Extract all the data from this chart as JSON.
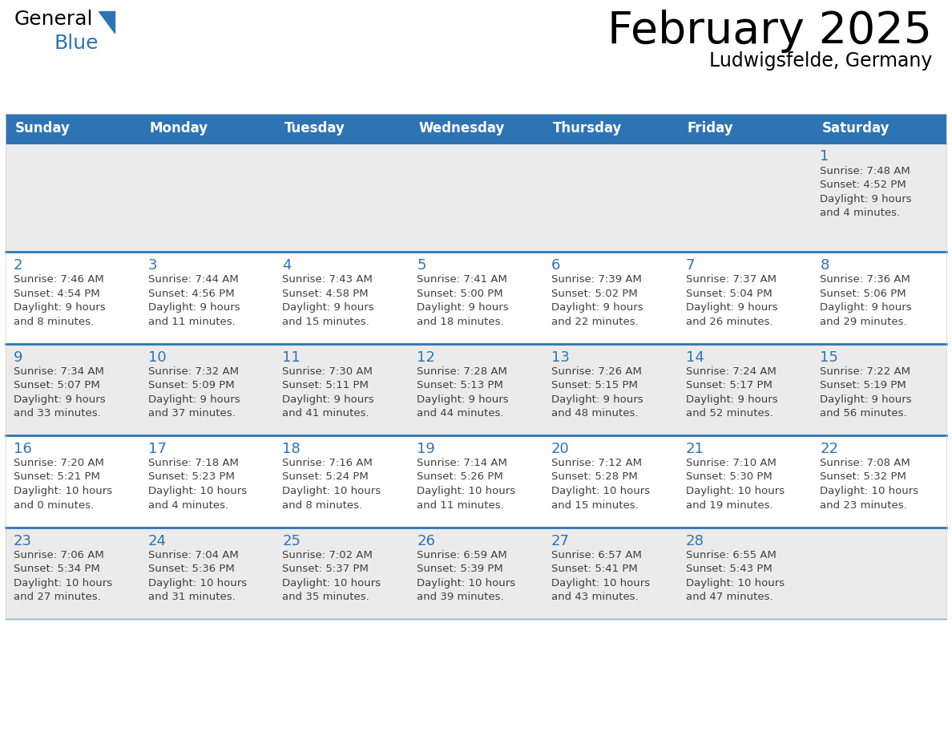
{
  "title": "February 2025",
  "subtitle": "Ludwigsfelde, Germany",
  "header_bg": "#2E74B5",
  "header_text_color": "#FFFFFF",
  "days_of_week": [
    "Sunday",
    "Monday",
    "Tuesday",
    "Wednesday",
    "Thursday",
    "Friday",
    "Saturday"
  ],
  "cell_bg_odd": "#EBEBEB",
  "cell_bg_even": "#FFFFFF",
  "divider_color": "#2E74B5",
  "text_color": "#404040",
  "day_number_color": "#2E74B5",
  "calendar_data": [
    [
      null,
      null,
      null,
      null,
      null,
      null,
      {
        "day": "1",
        "sunrise": "7:48 AM",
        "sunset": "4:52 PM",
        "daylight": "9 hours\nand 4 minutes."
      }
    ],
    [
      {
        "day": "2",
        "sunrise": "7:46 AM",
        "sunset": "4:54 PM",
        "daylight": "9 hours\nand 8 minutes."
      },
      {
        "day": "3",
        "sunrise": "7:44 AM",
        "sunset": "4:56 PM",
        "daylight": "9 hours\nand 11 minutes."
      },
      {
        "day": "4",
        "sunrise": "7:43 AM",
        "sunset": "4:58 PM",
        "daylight": "9 hours\nand 15 minutes."
      },
      {
        "day": "5",
        "sunrise": "7:41 AM",
        "sunset": "5:00 PM",
        "daylight": "9 hours\nand 18 minutes."
      },
      {
        "day": "6",
        "sunrise": "7:39 AM",
        "sunset": "5:02 PM",
        "daylight": "9 hours\nand 22 minutes."
      },
      {
        "day": "7",
        "sunrise": "7:37 AM",
        "sunset": "5:04 PM",
        "daylight": "9 hours\nand 26 minutes."
      },
      {
        "day": "8",
        "sunrise": "7:36 AM",
        "sunset": "5:06 PM",
        "daylight": "9 hours\nand 29 minutes."
      }
    ],
    [
      {
        "day": "9",
        "sunrise": "7:34 AM",
        "sunset": "5:07 PM",
        "daylight": "9 hours\nand 33 minutes."
      },
      {
        "day": "10",
        "sunrise": "7:32 AM",
        "sunset": "5:09 PM",
        "daylight": "9 hours\nand 37 minutes."
      },
      {
        "day": "11",
        "sunrise": "7:30 AM",
        "sunset": "5:11 PM",
        "daylight": "9 hours\nand 41 minutes."
      },
      {
        "day": "12",
        "sunrise": "7:28 AM",
        "sunset": "5:13 PM",
        "daylight": "9 hours\nand 44 minutes."
      },
      {
        "day": "13",
        "sunrise": "7:26 AM",
        "sunset": "5:15 PM",
        "daylight": "9 hours\nand 48 minutes."
      },
      {
        "day": "14",
        "sunrise": "7:24 AM",
        "sunset": "5:17 PM",
        "daylight": "9 hours\nand 52 minutes."
      },
      {
        "day": "15",
        "sunrise": "7:22 AM",
        "sunset": "5:19 PM",
        "daylight": "9 hours\nand 56 minutes."
      }
    ],
    [
      {
        "day": "16",
        "sunrise": "7:20 AM",
        "sunset": "5:21 PM",
        "daylight": "10 hours\nand 0 minutes."
      },
      {
        "day": "17",
        "sunrise": "7:18 AM",
        "sunset": "5:23 PM",
        "daylight": "10 hours\nand 4 minutes."
      },
      {
        "day": "18",
        "sunrise": "7:16 AM",
        "sunset": "5:24 PM",
        "daylight": "10 hours\nand 8 minutes."
      },
      {
        "day": "19",
        "sunrise": "7:14 AM",
        "sunset": "5:26 PM",
        "daylight": "10 hours\nand 11 minutes."
      },
      {
        "day": "20",
        "sunrise": "7:12 AM",
        "sunset": "5:28 PM",
        "daylight": "10 hours\nand 15 minutes."
      },
      {
        "day": "21",
        "sunrise": "7:10 AM",
        "sunset": "5:30 PM",
        "daylight": "10 hours\nand 19 minutes."
      },
      {
        "day": "22",
        "sunrise": "7:08 AM",
        "sunset": "5:32 PM",
        "daylight": "10 hours\nand 23 minutes."
      }
    ],
    [
      {
        "day": "23",
        "sunrise": "7:06 AM",
        "sunset": "5:34 PM",
        "daylight": "10 hours\nand 27 minutes."
      },
      {
        "day": "24",
        "sunrise": "7:04 AM",
        "sunset": "5:36 PM",
        "daylight": "10 hours\nand 31 minutes."
      },
      {
        "day": "25",
        "sunrise": "7:02 AM",
        "sunset": "5:37 PM",
        "daylight": "10 hours\nand 35 minutes."
      },
      {
        "day": "26",
        "sunrise": "6:59 AM",
        "sunset": "5:39 PM",
        "daylight": "10 hours\nand 39 minutes."
      },
      {
        "day": "27",
        "sunrise": "6:57 AM",
        "sunset": "5:41 PM",
        "daylight": "10 hours\nand 43 minutes."
      },
      {
        "day": "28",
        "sunrise": "6:55 AM",
        "sunset": "5:43 PM",
        "daylight": "10 hours\nand 47 minutes."
      },
      null
    ]
  ],
  "title_fontsize": 40,
  "subtitle_fontsize": 17,
  "header_fontsize": 12,
  "day_num_fontsize": 13,
  "info_fontsize": 9.5
}
